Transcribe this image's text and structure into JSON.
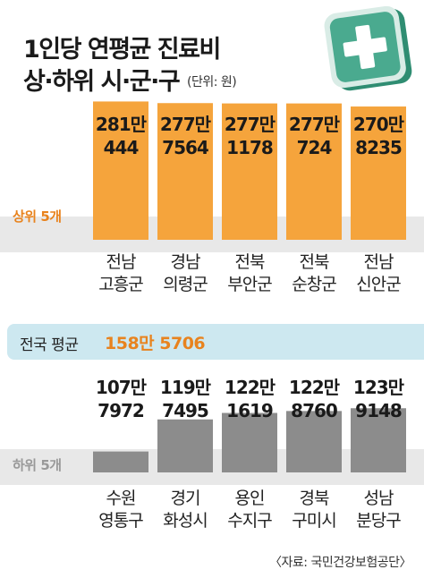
{
  "title_line1": "1인당 연평균 진료비",
  "title_line2": "상·하위 시·군·구",
  "unit_note": "(단위: 원)",
  "icon": "medical-cross-icon",
  "colors": {
    "top_bar": "#f5a43c",
    "bottom_bar": "#8c8c8c",
    "accent_text": "#e8831e",
    "avg_band": "#cde8f0",
    "icon_green": "#4aaa8f"
  },
  "average": {
    "label": "전국 평균",
    "value": "158만 5706"
  },
  "source": "〈자료: 국민건강보험공단〉",
  "chart_data": [
    {
      "type": "bar",
      "group_label": "상위 5개",
      "categories": [
        [
          "전남",
          "고흥군"
        ],
        [
          "경남",
          "의령군"
        ],
        [
          "전북",
          "부안군"
        ],
        [
          "전북",
          "순창군"
        ],
        [
          "전남",
          "신안군"
        ]
      ],
      "value_labels": [
        [
          "281만",
          "444"
        ],
        [
          "277만",
          "7564"
        ],
        [
          "277만",
          "1178"
        ],
        [
          "277만",
          "724"
        ],
        [
          "270만",
          "8235"
        ]
      ],
      "values": [
        2810444,
        2777564,
        2771178,
        2770724,
        2708235
      ]
    },
    {
      "type": "bar",
      "group_label": "하위 5개",
      "categories": [
        [
          "수원",
          "영통구"
        ],
        [
          "경기",
          "화성시"
        ],
        [
          "용인",
          "수지구"
        ],
        [
          "경북",
          "구미시"
        ],
        [
          "성남",
          "분당구"
        ]
      ],
      "value_labels": [
        [
          "107만",
          "7972"
        ],
        [
          "119만",
          "7495"
        ],
        [
          "122만",
          "1619"
        ],
        [
          "122만",
          "8760"
        ],
        [
          "123만",
          "9148"
        ]
      ],
      "values": [
        1077972,
        1197495,
        1221619,
        1228760,
        1239148
      ]
    }
  ]
}
